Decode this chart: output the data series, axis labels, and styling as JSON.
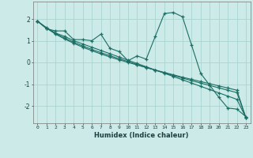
{
  "xlabel": "Humidex (Indice chaleur)",
  "ylabel": "",
  "bg_color": "#cceae7",
  "grid_color": "#aad4d0",
  "line_color": "#1a6e64",
  "x": [
    0,
    1,
    2,
    3,
    4,
    5,
    6,
    7,
    8,
    9,
    10,
    11,
    12,
    13,
    14,
    15,
    16,
    17,
    18,
    19,
    20,
    21,
    22,
    23
  ],
  "series1": [
    1.9,
    1.55,
    1.45,
    1.45,
    1.05,
    1.05,
    1.0,
    1.3,
    0.65,
    0.5,
    0.08,
    0.3,
    0.15,
    1.2,
    2.25,
    2.3,
    2.1,
    0.8,
    -0.5,
    -1.05,
    -1.6,
    -2.1,
    -2.15,
    -2.5
  ],
  "series2": [
    1.9,
    1.6,
    1.35,
    1.2,
    1.0,
    0.85,
    0.7,
    0.55,
    0.4,
    0.25,
    0.1,
    -0.05,
    -0.2,
    -0.35,
    -0.5,
    -0.65,
    -0.8,
    -0.95,
    -1.1,
    -1.25,
    -1.4,
    -1.55,
    -1.7,
    -2.55
  ],
  "series3": [
    1.9,
    1.58,
    1.33,
    1.12,
    0.93,
    0.76,
    0.6,
    0.45,
    0.31,
    0.17,
    0.04,
    -0.1,
    -0.23,
    -0.36,
    -0.48,
    -0.6,
    -0.72,
    -0.84,
    -0.95,
    -1.06,
    -1.17,
    -1.28,
    -1.39,
    -2.55
  ],
  "series4": [
    1.9,
    1.58,
    1.3,
    1.08,
    0.88,
    0.7,
    0.54,
    0.39,
    0.25,
    0.12,
    0.0,
    -0.12,
    -0.24,
    -0.35,
    -0.46,
    -0.57,
    -0.68,
    -0.78,
    -0.88,
    -0.98,
    -1.08,
    -1.18,
    -1.28,
    -2.55
  ],
  "ylim": [
    -2.8,
    2.8
  ],
  "yticks": [
    -2,
    -1,
    0,
    1,
    2
  ],
  "xticks": [
    0,
    1,
    2,
    3,
    4,
    5,
    6,
    7,
    8,
    9,
    10,
    11,
    12,
    13,
    14,
    15,
    16,
    17,
    18,
    19,
    20,
    21,
    22,
    23
  ]
}
